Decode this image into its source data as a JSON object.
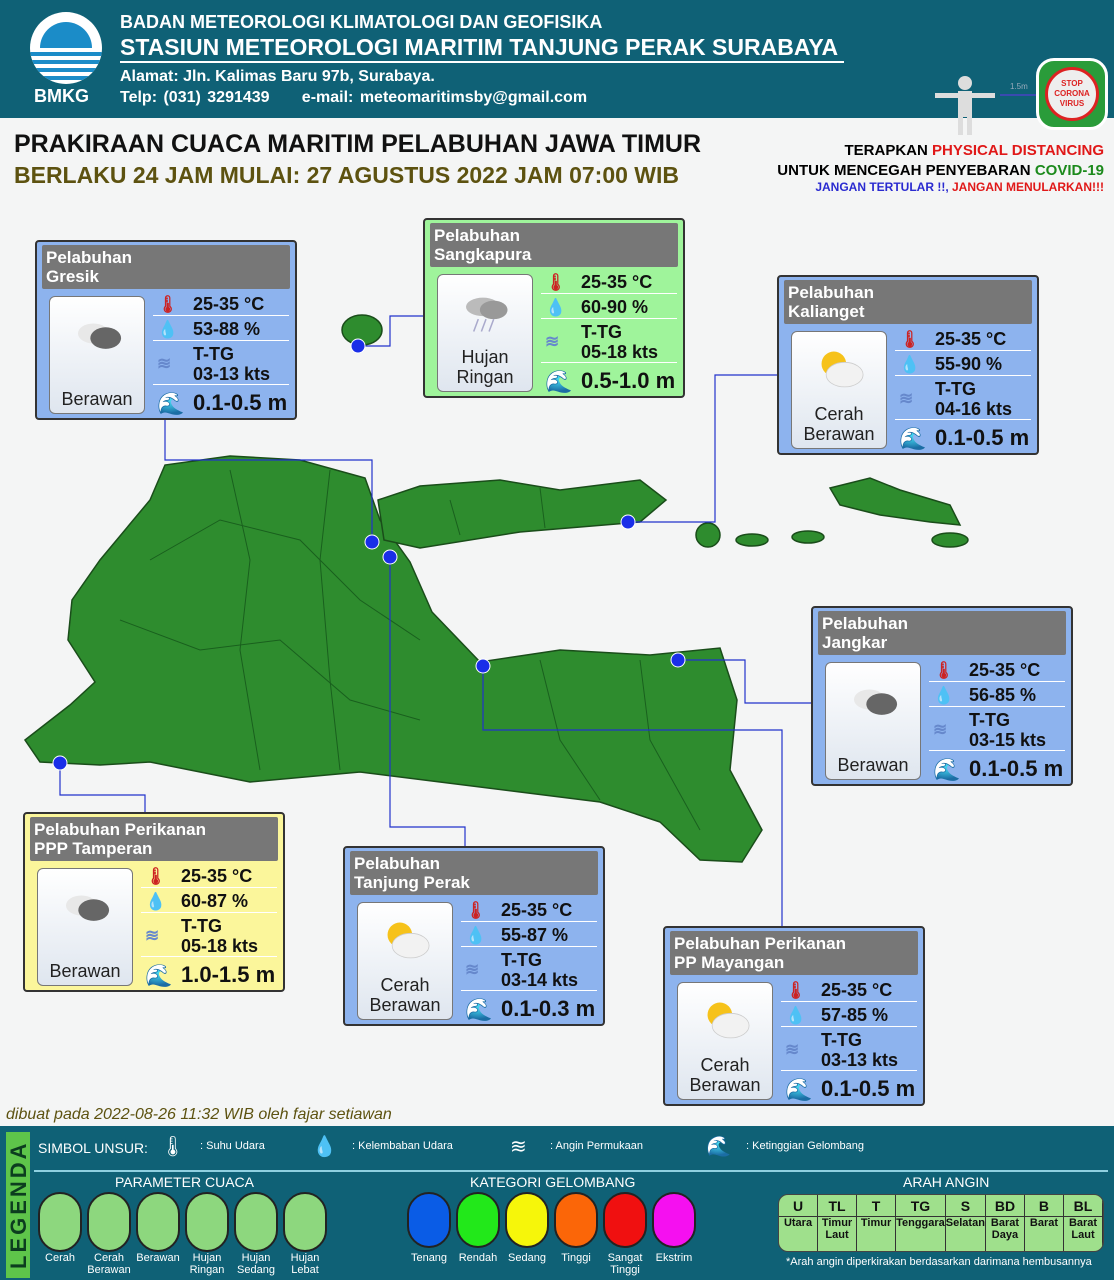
{
  "header": {
    "logo_text": "BMKG",
    "agency": "BADAN METEOROLOGI KLIMATOLOGI DAN GEOFISIKA",
    "station": "STASIUN METEOROLOGI MARITIM TANJUNG PERAK SURABAYA",
    "address": "Alamat: Jln. Kalimas Baru 97b, Surabaya.",
    "phone": "Telp: (031) 3291439",
    "email": "e-mail: meteomaritimsby@gmail.com",
    "distance_label": "1.5m",
    "stop_badge": "STOP CORONA VIRUS"
  },
  "title": {
    "main": "PRAKIRAAN CUACA MARITIM PELABUHAN JAWA TIMUR",
    "valid": "BERLAKU 24 JAM MULAI: 27 AGUSTUS 2022 JAM 07:00 WIB"
  },
  "campaign": {
    "l1a": "TERAPKAN ",
    "l1b": "PHYSICAL DISTANCING",
    "l2a": "UNTUK MENCEGAH PENYEBARAN ",
    "l2b": "COVID-19",
    "l3a": "JANGAN TERTULAR !!,  ",
    "l3b": "JANGAN MENULARKAN!!!"
  },
  "colors": {
    "header": "#0f6176",
    "map": "#2e8c2e",
    "card_blue": "#8db3ee",
    "card_green": "#9ff49b",
    "card_yellow": "#fbf69b"
  },
  "ports": [
    {
      "name": "Pelabuhan\nGresik",
      "weather": "Berawan",
      "icon": "cloudy",
      "temp": "25-35 °C",
      "humidity": "53-88 %",
      "wind_dir": "T-TG",
      "wind_speed": "03-13 kts",
      "wave": "0.1-0.5 m",
      "theme": "blue"
    },
    {
      "name": "Pelabuhan\nSangkapura",
      "weather": "Hujan\nRingan",
      "icon": "light-rain",
      "temp": "25-35 °C",
      "humidity": "60-90 %",
      "wind_dir": "T-TG",
      "wind_speed": "05-18 kts",
      "wave": "0.5-1.0 m",
      "theme": "green"
    },
    {
      "name": "Pelabuhan\nKalianget",
      "weather": "Cerah\nBerawan",
      "icon": "partly-cloudy",
      "temp": "25-35 °C",
      "humidity": "55-90 %",
      "wind_dir": "T-TG",
      "wind_speed": "04-16 kts",
      "wave": "0.1-0.5 m",
      "theme": "blue"
    },
    {
      "name": "Pelabuhan\nJangkar",
      "weather": "Berawan",
      "icon": "cloudy",
      "temp": "25-35 °C",
      "humidity": "56-85 %",
      "wind_dir": "T-TG",
      "wind_speed": "03-15 kts",
      "wave": "0.1-0.5 m",
      "theme": "blue"
    },
    {
      "name": "Pelabuhan Perikanan\nPPP Tamperan",
      "weather": "Berawan",
      "icon": "cloudy",
      "temp": "25-35 °C",
      "humidity": "60-87 %",
      "wind_dir": "T-TG",
      "wind_speed": "05-18 kts",
      "wave": "1.0-1.5 m",
      "theme": "yellow"
    },
    {
      "name": "Pelabuhan\nTanjung Perak",
      "weather": "Cerah\nBerawan",
      "icon": "partly-cloudy",
      "temp": "25-35 °C",
      "humidity": "55-87 %",
      "wind_dir": "T-TG",
      "wind_speed": "03-14 kts",
      "wave": "0.1-0.3 m",
      "theme": "blue"
    },
    {
      "name": "Pelabuhan Perikanan\nPP Mayangan",
      "weather": "Cerah\nBerawan",
      "icon": "partly-cloudy",
      "temp": "25-35 °C",
      "humidity": "57-85 %",
      "wind_dir": "T-TG",
      "wind_speed": "03-13 kts",
      "wave": "0.1-0.5 m",
      "theme": "blue"
    }
  ],
  "footer_credit": "dibuat pada 2022-08-26 11:32 WIB oleh fajar setiawan",
  "legend": {
    "title": "LEGENDA",
    "symbols_label": "SIMBOL UNSUR:",
    "symbols": [
      {
        "icon": "thermometer-icon",
        "label": ": Suhu Udara"
      },
      {
        "icon": "humidity-icon",
        "label": ": Kelembaban Udara"
      },
      {
        "icon": "wind-icon",
        "label": ": Angin Permukaan"
      },
      {
        "icon": "wave-icon",
        "label": ": Ketinggian Gelombang"
      }
    ],
    "weather_title": "PARAMETER CUACA",
    "weather": [
      "Cerah",
      "Cerah\nBerawan",
      "Berawan",
      "Hujan\nRingan",
      "Hujan\nSedang",
      "Hujan\nLebat"
    ],
    "wave_title": "KATEGORI GELOMBANG",
    "waves": [
      {
        "label": "Tenang",
        "color": "#0a5ce6"
      },
      {
        "label": "Rendah",
        "color": "#22e81a"
      },
      {
        "label": "Sedang",
        "color": "#f6f60a"
      },
      {
        "label": "Tinggi",
        "color": "#fb6608"
      },
      {
        "label": "Sangat\nTinggi",
        "color": "#f01010"
      },
      {
        "label": "Ekstrim",
        "color": "#f510f0"
      }
    ],
    "wind_title": "ARAH ANGIN",
    "winds": [
      {
        "c": "U",
        "n": "Utara"
      },
      {
        "c": "TL",
        "n": "Timur Laut"
      },
      {
        "c": "T",
        "n": "Timur"
      },
      {
        "c": "TG",
        "n": "Tenggara"
      },
      {
        "c": "S",
        "n": "Selatan"
      },
      {
        "c": "BD",
        "n": "Barat Daya"
      },
      {
        "c": "B",
        "n": "Barat"
      },
      {
        "c": "BL",
        "n": "Barat Laut"
      }
    ],
    "wind_note": "*Arah angin diperkirakan berdasarkan darimana hembusannya"
  }
}
